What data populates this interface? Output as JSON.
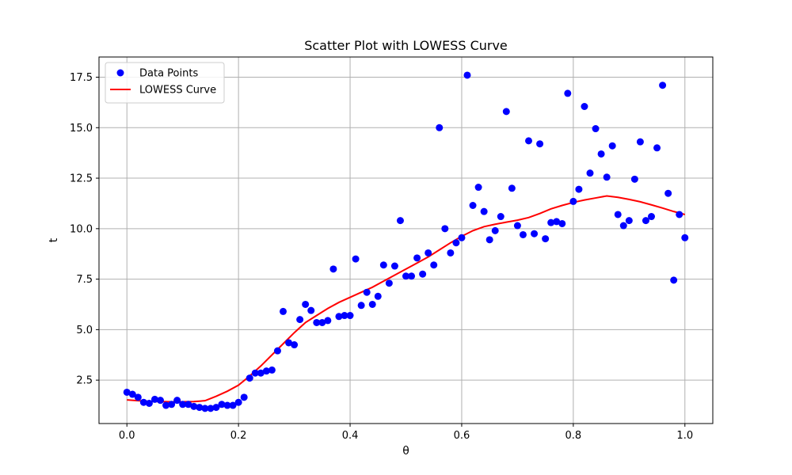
{
  "chart_data": {
    "type": "scatter",
    "title": "Scatter Plot with LOWESS Curve",
    "xlabel": "θ",
    "ylabel": "t",
    "xlim": [
      -0.05,
      1.05
    ],
    "ylim": [
      0.35,
      18.5
    ],
    "xticks": [
      0.0,
      0.2,
      0.4,
      0.6,
      0.8,
      1.0
    ],
    "xtick_labels": [
      "0.0",
      "0.2",
      "0.4",
      "0.6",
      "0.8",
      "1.0"
    ],
    "yticks": [
      2.5,
      5.0,
      7.5,
      10.0,
      12.5,
      15.0,
      17.5
    ],
    "ytick_labels": [
      "2.5",
      "5.0",
      "7.5",
      "10.0",
      "12.5",
      "15.0",
      "17.5"
    ],
    "grid": true,
    "legend_position": "top-left",
    "series": [
      {
        "name": "Data Points",
        "kind": "scatter",
        "color": "#0000ff",
        "x": [
          0.0,
          0.01,
          0.02,
          0.03,
          0.04,
          0.05,
          0.06,
          0.07,
          0.08,
          0.09,
          0.1,
          0.11,
          0.12,
          0.13,
          0.14,
          0.15,
          0.16,
          0.17,
          0.18,
          0.19,
          0.2,
          0.21,
          0.22,
          0.23,
          0.24,
          0.25,
          0.26,
          0.27,
          0.28,
          0.29,
          0.3,
          0.31,
          0.32,
          0.33,
          0.34,
          0.35,
          0.36,
          0.37,
          0.38,
          0.39,
          0.4,
          0.41,
          0.42,
          0.43,
          0.44,
          0.45,
          0.46,
          0.47,
          0.48,
          0.49,
          0.5,
          0.51,
          0.52,
          0.53,
          0.54,
          0.55,
          0.56,
          0.57,
          0.58,
          0.59,
          0.6,
          0.61,
          0.62,
          0.63,
          0.64,
          0.65,
          0.66,
          0.67,
          0.68,
          0.69,
          0.7,
          0.71,
          0.72,
          0.73,
          0.74,
          0.75,
          0.76,
          0.77,
          0.78,
          0.79,
          0.8,
          0.81,
          0.82,
          0.83,
          0.84,
          0.85,
          0.86,
          0.87,
          0.88,
          0.89,
          0.9,
          0.91,
          0.92,
          0.93,
          0.94,
          0.95,
          0.96,
          0.97,
          0.98,
          0.99,
          1.0
        ],
        "y": [
          1.9,
          1.8,
          1.65,
          1.4,
          1.35,
          1.55,
          1.5,
          1.25,
          1.3,
          1.5,
          1.3,
          1.3,
          1.2,
          1.15,
          1.1,
          1.1,
          1.15,
          1.3,
          1.25,
          1.25,
          1.4,
          1.65,
          2.6,
          2.85,
          2.85,
          2.95,
          3.0,
          3.95,
          5.9,
          4.35,
          4.25,
          5.5,
          6.25,
          5.95,
          5.35,
          5.35,
          5.45,
          8.0,
          5.65,
          5.7,
          5.7,
          8.5,
          6.2,
          6.85,
          6.25,
          6.65,
          8.2,
          7.3,
          8.15,
          10.4,
          7.65,
          7.65,
          8.55,
          7.75,
          8.8,
          8.2,
          15.0,
          10.0,
          8.8,
          9.3,
          9.55,
          17.6,
          11.15,
          12.05,
          10.85,
          9.45,
          9.9,
          10.6,
          15.8,
          12.0,
          10.15,
          9.7,
          14.35,
          9.75,
          14.2,
          9.5,
          10.3,
          10.35,
          10.25,
          16.7,
          11.35,
          11.95,
          16.05,
          12.75,
          14.95,
          13.7,
          12.55,
          14.1,
          10.7,
          10.15,
          10.4,
          12.45,
          14.3,
          10.4,
          10.6,
          14.0,
          17.1,
          11.75,
          7.45,
          10.7,
          9.55
        ]
      },
      {
        "name": "LOWESS Curve",
        "kind": "line",
        "color": "#ff0000",
        "x": [
          0.0,
          0.02,
          0.04,
          0.06,
          0.08,
          0.1,
          0.12,
          0.14,
          0.16,
          0.18,
          0.2,
          0.22,
          0.24,
          0.26,
          0.28,
          0.3,
          0.32,
          0.34,
          0.36,
          0.38,
          0.4,
          0.42,
          0.44,
          0.46,
          0.48,
          0.5,
          0.52,
          0.54,
          0.56,
          0.58,
          0.6,
          0.62,
          0.64,
          0.66,
          0.68,
          0.7,
          0.72,
          0.74,
          0.76,
          0.78,
          0.8,
          0.82,
          0.84,
          0.86,
          0.88,
          0.9,
          0.92,
          0.94,
          0.96,
          0.98,
          1.0
        ],
        "y": [
          1.52,
          1.48,
          1.45,
          1.44,
          1.43,
          1.43,
          1.44,
          1.48,
          1.7,
          1.95,
          2.25,
          2.7,
          3.2,
          3.75,
          4.3,
          4.85,
          5.35,
          5.7,
          6.05,
          6.35,
          6.6,
          6.85,
          7.1,
          7.4,
          7.7,
          8.0,
          8.3,
          8.6,
          8.95,
          9.3,
          9.62,
          9.9,
          10.1,
          10.22,
          10.32,
          10.42,
          10.55,
          10.75,
          10.98,
          11.15,
          11.3,
          11.42,
          11.52,
          11.62,
          11.55,
          11.45,
          11.33,
          11.18,
          11.02,
          10.85,
          10.7
        ]
      }
    ]
  }
}
